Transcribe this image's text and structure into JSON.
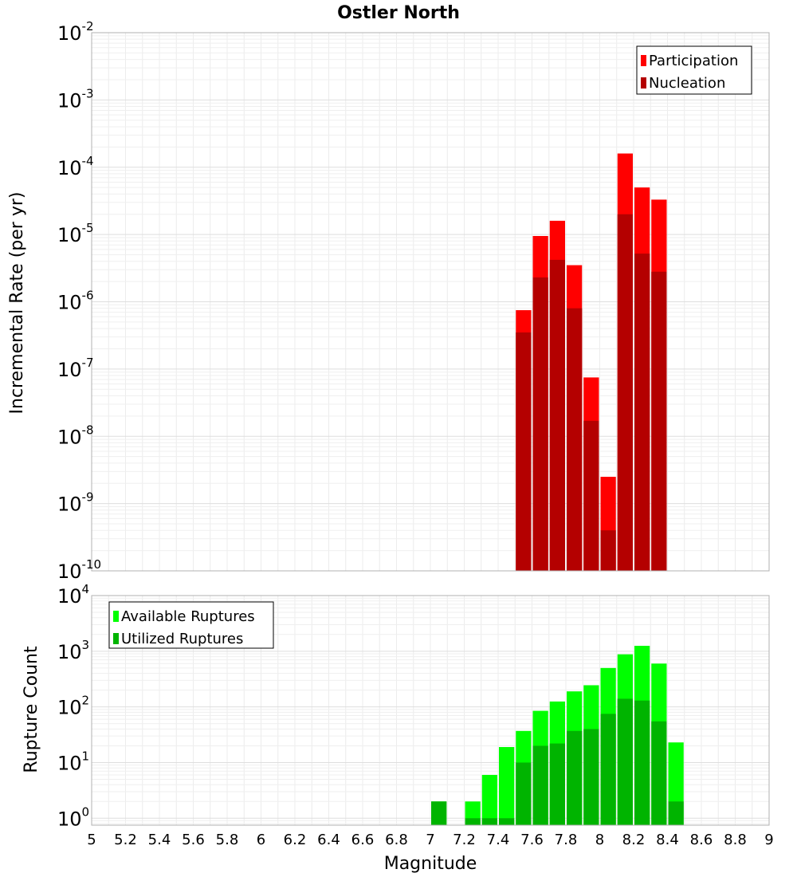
{
  "chart_data": [
    {
      "type": "bar",
      "title": "Ostler North",
      "xlabel": "",
      "ylabel": "Incremental Rate (per yr)",
      "y_scale": "log",
      "ylim": [
        1e-10,
        0.01
      ],
      "xlim": [
        5,
        9
      ],
      "y_ticks": [
        {
          "base": "10",
          "exp": "-10"
        },
        {
          "base": "10",
          "exp": "-9"
        },
        {
          "base": "10",
          "exp": "-8"
        },
        {
          "base": "10",
          "exp": "-7"
        },
        {
          "base": "10",
          "exp": "-6"
        },
        {
          "base": "10",
          "exp": "-5"
        },
        {
          "base": "10",
          "exp": "-4"
        },
        {
          "base": "10",
          "exp": "-3"
        },
        {
          "base": "10",
          "exp": "-2"
        }
      ],
      "grid": true,
      "legend_position": "top-right",
      "bar_width": 0.1,
      "x": [
        7.55,
        7.65,
        7.75,
        7.85,
        7.95,
        8.05,
        8.15,
        8.25,
        8.35
      ],
      "series": [
        {
          "name": "Participation",
          "color": "#ff0000",
          "values": [
            7.5e-07,
            9.5e-06,
            1.6e-05,
            3.5e-06,
            7.5e-08,
            2.5e-09,
            0.00016,
            5e-05,
            3.3e-05
          ]
        },
        {
          "name": "Nucleation",
          "color": "#b40000",
          "values": [
            3.5e-07,
            2.3e-06,
            4.2e-06,
            8e-07,
            1.7e-08,
            4e-10,
            2e-05,
            5.2e-06,
            2.8e-06
          ]
        }
      ]
    },
    {
      "type": "bar",
      "title": "",
      "xlabel": "Magnitude",
      "ylabel": "Rupture Count",
      "y_scale": "log",
      "ylim": [
        0.75,
        10000.0
      ],
      "xlim": [
        5,
        9
      ],
      "x_ticks": [
        "5",
        "5.2",
        "5.4",
        "5.6",
        "5.8",
        "6",
        "6.2",
        "6.4",
        "6.6",
        "6.8",
        "7",
        "7.2",
        "7.4",
        "7.6",
        "7.8",
        "8",
        "8.2",
        "8.4",
        "8.6",
        "8.8",
        "9"
      ],
      "y_ticks": [
        {
          "base": "10",
          "exp": "0"
        },
        {
          "base": "10",
          "exp": "1"
        },
        {
          "base": "10",
          "exp": "2"
        },
        {
          "base": "10",
          "exp": "3"
        },
        {
          "base": "10",
          "exp": "4"
        }
      ],
      "grid": true,
      "legend_position": "top-left",
      "bar_width": 0.1,
      "x": [
        7.05,
        7.15,
        7.25,
        7.35,
        7.45,
        7.55,
        7.65,
        7.75,
        7.85,
        7.95,
        8.05,
        8.15,
        8.25,
        8.35,
        8.45
      ],
      "series": [
        {
          "name": "Available Ruptures",
          "color": "#00ff00",
          "values": [
            2,
            0,
            2,
            6,
            19,
            37,
            85,
            125,
            190,
            245,
            500,
            880,
            1250,
            600,
            23
          ]
        },
        {
          "name": "Utilized Ruptures",
          "color": "#00b400",
          "values": [
            2,
            0,
            1,
            1,
            1,
            10,
            20,
            22,
            37,
            40,
            75,
            140,
            130,
            55,
            2
          ]
        }
      ]
    }
  ]
}
